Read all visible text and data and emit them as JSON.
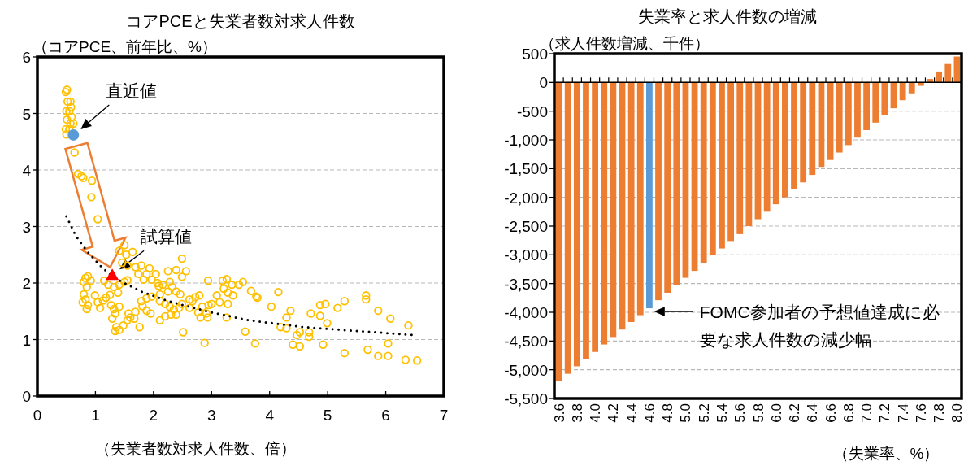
{
  "chart_data": [
    {
      "type": "scatter",
      "title": "コアPCEと失業者数対求人件数",
      "ylabel": "（コアPCE、前年比、%）",
      "xlabel": "（失業者数対求人件数、倍）",
      "xlim": [
        0,
        7
      ],
      "xticks": [
        0,
        1,
        2,
        3,
        4,
        5,
        6,
        7
      ],
      "ylim": [
        0,
        6
      ],
      "yticks": [
        0,
        1,
        2,
        3,
        4,
        5,
        6
      ],
      "grid": "y",
      "series": [
        {
          "type": "scatter",
          "marker": "circle",
          "color": "#ffc000",
          "x": [
            0.51,
            0.49,
            0.52,
            0.57,
            0.58,
            0.5,
            0.55,
            0.59,
            0.51,
            0.57,
            0.62,
            0.49,
            0.55,
            0.5,
            0.64,
            0.7,
            0.76,
            0.79,
            0.94,
            0.93,
            1.04,
            0.83,
            0.87,
            0.8,
            0.92,
            0.85,
            0.8,
            0.83,
            0.78,
            0.87,
            0.85,
            0.99,
            1.04,
            1.08,
            1.13,
            1.18,
            1.25,
            1.27,
            1.32,
            1.39,
            1.41,
            1.34,
            1.29,
            1.36,
            1.34,
            1.41,
            1.48,
            1.55,
            1.6,
            1.67,
            1.57,
            1.69,
            1.76,
            1.15,
            1.22,
            1.32,
            1.41,
            1.5,
            1.55,
            1.41,
            1.5,
            1.53,
            1.64,
            1.46,
            1.55,
            1.69,
            1.79,
            1.74,
            1.88,
            1.93,
            2.04,
            1.83,
            1.97,
            2.07,
            2.09,
            2.16,
            2.25,
            2.39,
            2.49,
            2.56,
            2.49,
            2.28,
            2.32,
            2.25,
            2.39,
            2.46,
            2.11,
            1.97,
            1.88,
            1.79,
            1.81,
            1.88,
            1.95,
            2.11,
            2.2,
            2.28,
            2.35,
            2.44,
            2.49,
            2.62,
            2.72,
            2.79,
            2.67,
            2.84,
            2.91,
            2.95,
            3.0,
            3.09,
            3.14,
            3.19,
            3.26,
            3.21,
            3.28,
            3.37,
            3.35,
            3.47,
            3.54,
            3.28,
            3.26,
            2.94,
            2.62,
            2.81,
            2.93,
            2.77,
            2.11,
            2.2,
            2.3,
            2.39,
            2.51,
            2.88,
            3.58,
            3.75,
            3.68,
            3.77,
            3.79,
            4.03,
            4.15,
            4.29,
            4.36,
            4.19,
            4.29,
            4.47,
            4.52,
            4.4,
            4.52,
            4.71,
            4.68,
            4.68,
            4.87,
            4.96,
            4.87,
            4.99,
            4.92,
            5.17,
            5.29,
            5.29,
            5.66,
            5.66,
            5.69,
            5.87,
            5.87,
            6.04,
            6.04,
            6.08,
            6.39,
            6.34,
            6.54
          ],
          "values": [
            5.42,
            5.38,
            5.21,
            5.21,
            5.11,
            5.04,
            5.04,
            4.94,
            4.89,
            4.82,
            4.82,
            4.72,
            4.72,
            4.63,
            4.31,
            3.93,
            3.89,
            3.86,
            3.81,
            3.52,
            3.13,
            2.09,
            2.12,
            2.02,
            2.04,
            1.93,
            1.8,
            1.71,
            1.66,
            1.61,
            1.54,
            1.78,
            1.66,
            1.56,
            1.69,
            1.74,
            1.79,
            1.61,
            1.54,
            1.83,
            1.58,
            1.46,
            1.37,
            1.22,
            1.15,
            1.17,
            1.25,
            1.34,
            1.39,
            1.37,
            1.46,
            1.49,
            1.22,
            2.04,
            1.97,
            1.93,
            1.97,
            2.02,
            2.05,
            2.57,
            2.67,
            2.5,
            2.55,
            2.36,
            2.31,
            2.28,
            2.31,
            2.16,
            2.16,
            2.26,
            2.16,
            2.06,
            2.06,
            2.0,
            1.95,
            1.97,
            2.21,
            2.23,
            2.43,
            2.21,
            2.11,
            2.02,
            1.93,
            1.85,
            1.85,
            1.8,
            1.8,
            1.76,
            1.73,
            1.68,
            1.59,
            1.51,
            1.46,
            1.68,
            1.63,
            1.58,
            1.53,
            1.56,
            1.63,
            1.56,
            1.75,
            1.78,
            1.68,
            1.58,
            1.46,
            1.61,
            1.63,
            1.78,
            1.66,
            2.04,
            2.07,
            1.9,
            1.83,
            1.78,
            1.97,
            1.97,
            2.02,
            1.63,
            1.39,
            2.04,
            1.71,
            1.39,
            1.39,
            1.48,
            1.34,
            1.41,
            1.44,
            1.44,
            1.13,
            0.94,
            1.14,
            0.93,
            1.86,
            1.76,
            1.74,
            1.58,
            1.84,
            1.39,
            1.51,
            1.22,
            1.2,
            1.08,
            1.13,
            0.91,
            0.88,
            1.46,
            1.13,
            1.05,
            1.61,
            1.63,
            1.42,
            1.29,
            0.91,
            1.56,
            1.68,
            0.76,
            1.78,
            1.71,
            0.82,
            1.51,
            0.71,
            0.71,
            0.93,
            1.37,
            1.25,
            0.64,
            0.63
          ]
        },
        {
          "type": "line",
          "line_style": "dotted",
          "marker": "none",
          "color": "#000000",
          "x": [
            0.5,
            0.66,
            0.85,
            1.08,
            1.32,
            1.79,
            2.25,
            2.95,
            3.65,
            4.59,
            5.52,
            6.48
          ],
          "values": [
            3.18,
            2.84,
            2.57,
            2.31,
            2.09,
            1.85,
            1.68,
            1.49,
            1.34,
            1.22,
            1.15,
            1.08
          ]
        },
        {
          "type": "scatter",
          "marker": "circle",
          "color": "#5b9bd5",
          "x": [
            0.62
          ],
          "values": [
            4.62
          ]
        },
        {
          "type": "scatter",
          "marker": "triangle",
          "color": "#ff0000",
          "x": [
            1.29
          ],
          "values": [
            2.14
          ]
        }
      ],
      "annotations": [
        {
          "text": "直近値",
          "x": 0.62,
          "y": 4.62
        },
        {
          "text": "試算値",
          "x": 1.29,
          "y": 2.14
        }
      ]
    },
    {
      "type": "bar",
      "title": "失業率と求人件数の増減",
      "ylabel": "（求人件数増減、千件）",
      "xlabel": "（失業率、%）",
      "categories": [
        "3.6",
        null,
        "3.8",
        null,
        "4.0",
        null,
        "4.2",
        null,
        "4.4",
        null,
        "4.6",
        null,
        "4.8",
        null,
        "5.0",
        null,
        "5.2",
        null,
        "5.4",
        null,
        "5.6",
        null,
        "5.8",
        null,
        "6.0",
        null,
        "6.2",
        null,
        "6.4",
        null,
        "6.6",
        null,
        "6.8",
        null,
        "7.0",
        null,
        "7.2",
        null,
        "7.4",
        null,
        "7.6",
        null,
        "7.8",
        null,
        "8.0"
      ],
      "values": [
        -5200,
        -5070,
        -4940,
        -4820,
        -4690,
        -4560,
        -4430,
        -4300,
        -4170,
        -4050,
        -3930,
        -3790,
        -3660,
        -3530,
        -3400,
        -3280,
        -3150,
        -3010,
        -2890,
        -2760,
        -2640,
        -2500,
        -2380,
        -2250,
        -2120,
        -2000,
        -1860,
        -1740,
        -1610,
        -1470,
        -1350,
        -1220,
        -1090,
        -960,
        -830,
        -700,
        -570,
        -450,
        -310,
        -190,
        -60,
        60,
        190,
        320,
        450
      ],
      "colors": [
        "#ed7d31",
        "#ed7d31",
        "#ed7d31",
        "#ed7d31",
        "#ed7d31",
        "#ed7d31",
        "#ed7d31",
        "#ed7d31",
        "#ed7d31",
        "#ed7d31",
        "#5b9bd5",
        "#ed7d31",
        "#ed7d31",
        "#ed7d31",
        "#ed7d31",
        "#ed7d31",
        "#ed7d31",
        "#ed7d31",
        "#ed7d31",
        "#ed7d31",
        "#ed7d31",
        "#ed7d31",
        "#ed7d31",
        "#ed7d31",
        "#ed7d31",
        "#ed7d31",
        "#ed7d31",
        "#ed7d31",
        "#ed7d31",
        "#ed7d31",
        "#ed7d31",
        "#ed7d31",
        "#ed7d31",
        "#ed7d31",
        "#ed7d31",
        "#ed7d31",
        "#ed7d31",
        "#ed7d31",
        "#ed7d31",
        "#ed7d31",
        "#ed7d31",
        "#ed7d31",
        "#ed7d31",
        "#ed7d31",
        "#ed7d31"
      ],
      "ylim": [
        -5500,
        500
      ],
      "yticks": [
        500,
        0,
        -500,
        {
          "value": -1000,
          "label": "-1,000"
        },
        {
          "value": -1500,
          "label": "-1,500"
        },
        {
          "value": -2000,
          "label": "-2,000"
        },
        {
          "value": -2500,
          "label": "-2,500"
        },
        {
          "value": -3000,
          "label": "-3,000"
        },
        {
          "value": -3500,
          "label": "-3,500"
        },
        {
          "value": -4000,
          "label": "-4,000"
        },
        {
          "value": -4500,
          "label": "-4,500"
        },
        {
          "value": -5000,
          "label": "-5,000"
        },
        {
          "value": -5500,
          "label": "-5,500"
        }
      ],
      "grid": "y",
      "annotations": [
        {
          "text": "FOMC参加者の予想値達成に必要な求人件数の減少幅",
          "x": "4.6",
          "y": -3930
        }
      ]
    }
  ]
}
